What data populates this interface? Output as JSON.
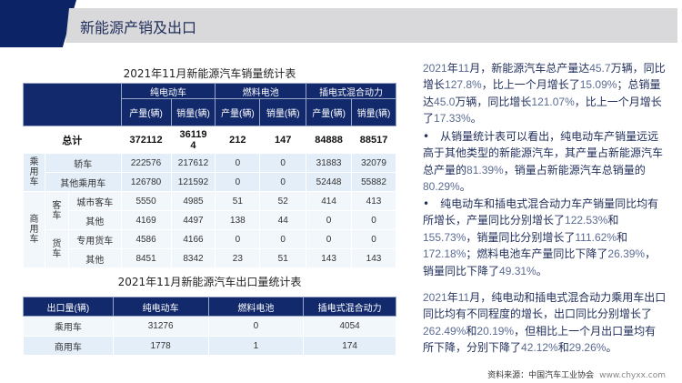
{
  "header": {
    "title": "新能源产销及出口"
  },
  "sales_table": {
    "title": "2021年11月新能源汽车销量统计表",
    "groups": [
      "纯电动车",
      "燃料电池",
      "插电式混合动力"
    ],
    "sub": [
      "产量(辆)",
      "销量(辆)"
    ],
    "total": {
      "label": "总计",
      "values": [
        "372112",
        "36119\n4",
        "212",
        "147",
        "84888",
        "88517"
      ]
    },
    "cat_passenger": "乘用车",
    "cat_commercial": "商用车",
    "sub_bus": "客车",
    "sub_truck": "货车",
    "rows": [
      {
        "label": "轿车",
        "values": [
          "222576",
          "217612",
          "0",
          "0",
          "31883",
          "32079"
        ]
      },
      {
        "label": "其他乘用车",
        "values": [
          "126780",
          "121592",
          "0",
          "0",
          "52448",
          "55882"
        ]
      },
      {
        "label": "城市客车",
        "values": [
          "5550",
          "4985",
          "51",
          "52",
          "414",
          "413"
        ]
      },
      {
        "label": "其他",
        "values": [
          "4169",
          "4497",
          "138",
          "44",
          "0",
          "0"
        ]
      },
      {
        "label": "专用货车",
        "values": [
          "4586",
          "4166",
          "0",
          "0",
          "0",
          "0"
        ]
      },
      {
        "label": "其他",
        "values": [
          "8451",
          "8342",
          "23",
          "51",
          "143",
          "143"
        ]
      }
    ]
  },
  "export_table": {
    "title": "2021年11月新能源汽车出口量统计表",
    "headers": [
      "出口量(辆)",
      "纯电动车",
      "燃料电池",
      "插电式混合动力"
    ],
    "rows": [
      {
        "label": "乘用车",
        "values": [
          "31276",
          "0",
          "4054"
        ]
      },
      {
        "label": "商用车",
        "values": [
          "1778",
          "1",
          "174"
        ]
      }
    ]
  },
  "text": {
    "p1": [
      "2021",
      "年",
      "11",
      "月，新能源汽车总产量达",
      "45.7",
      "万辆，同比增长",
      "127.8%",
      "，比上一个月增长了",
      "15.09%",
      "；总销量达",
      "45.0",
      "万辆，同比增长",
      "121.07%",
      "，比上一个月增长了",
      "17.33%",
      "。"
    ],
    "p2": [
      "•　从销量统计表可以看出，纯电动车产销量远远高于其他类型的新能源汽车，其产量占新能源汽车总产量的",
      "81.39%",
      "，销量占新能源汽车总销量的",
      "80.29%",
      "。"
    ],
    "p3": [
      "•　纯电动车和插电式混合动力车产销量同比均有所增长，产量同比分别增长了",
      "122.53%",
      "和",
      "155.73%",
      "，销量同比分别增长了",
      "111.62%",
      "和",
      "172.18%",
      "；燃料电池车产量同比下降了",
      "26.39%",
      "，销量同比下降了",
      "49.31%",
      "。"
    ],
    "p4": [
      "2021",
      "年",
      "11",
      "月，纯电动和插电式混合动力乘用车出口同比均有不同程度的增长，出口同比分别增长了",
      "262.49%",
      "和",
      "20.19%",
      "，但相比上一个月出口量均有所下降，分别下降了",
      "42.12%",
      "和",
      "29.26%",
      "。"
    ]
  },
  "source": {
    "label": "资料来源：中国汽车工业协会",
    "url": "www.chyxx.com"
  }
}
